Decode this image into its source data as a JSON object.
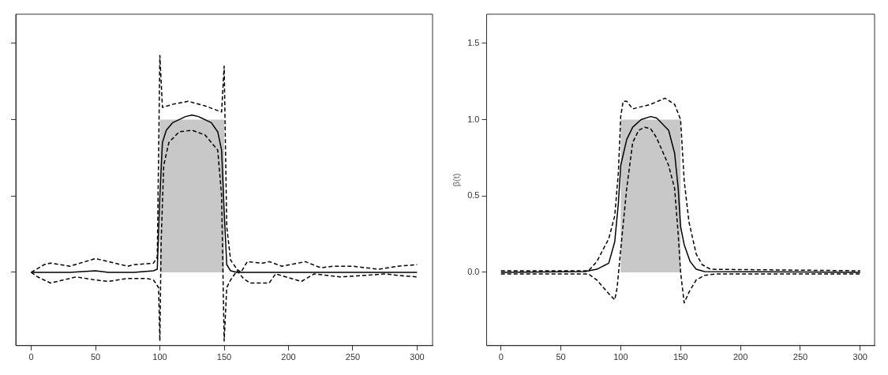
{
  "chart_data": [
    {
      "type": "line",
      "xlim": [
        -12,
        312
      ],
      "xticks": [
        0,
        50,
        100,
        150,
        200,
        250,
        300
      ],
      "ylim": [
        -0.48,
        1.69
      ],
      "yticks": [
        {
          "value": 0,
          "label": null
        },
        {
          "value": 0.5,
          "label": null
        },
        {
          "value": 1,
          "label": null
        },
        {
          "value": 1.5,
          "label": null
        }
      ],
      "tick_labels": "x",
      "grid": false,
      "legend": false,
      "series": [
        {
          "type": "area",
          "color": "#c8c8c8",
          "x": [
            0,
            100,
            100,
            150,
            150,
            300
          ],
          "values": [
            0,
            0,
            1,
            1,
            0,
            0
          ]
        },
        {
          "color": "#000000",
          "x": [
            0,
            30,
            50,
            60,
            80,
            95,
            98,
            100,
            102,
            105,
            110,
            120,
            125,
            130,
            140,
            145,
            148,
            150,
            152,
            155,
            160,
            200,
            250,
            300
          ],
          "values": [
            0,
            0,
            0.01,
            0,
            0,
            0.01,
            0.02,
            0.5,
            0.85,
            0.93,
            0.98,
            1.02,
            1.03,
            1.02,
            0.98,
            0.92,
            0.8,
            0.4,
            0.05,
            0.01,
            0,
            0,
            0,
            0
          ]
        },
        {
          "color": "#000000",
          "line_style": "dashed",
          "x": [
            0,
            10,
            15,
            30,
            50,
            60,
            75,
            80,
            95,
            98,
            100,
            102,
            110,
            122,
            135,
            148,
            150,
            152,
            155,
            160,
            163,
            168,
            180,
            185,
            195,
            213,
            225,
            235,
            250,
            270,
            285,
            300
          ],
          "values": [
            0,
            0.05,
            0.06,
            0.04,
            0.09,
            0.07,
            0.04,
            0.05,
            0.06,
            0.1,
            1.42,
            1.08,
            1.1,
            1.12,
            1.09,
            1.05,
            1.35,
            0.3,
            0.08,
            0.02,
            0,
            0.07,
            0.06,
            0.07,
            0.04,
            0.07,
            0.03,
            0.04,
            0.04,
            0.02,
            0.04,
            0.05
          ]
        },
        {
          "color": "#000000",
          "line_style": "dashed",
          "x": [
            0,
            5,
            15,
            35,
            50,
            60,
            75,
            90,
            95,
            99,
            100,
            101,
            103,
            107,
            115,
            125,
            135,
            145,
            148,
            150,
            152,
            155,
            160,
            165,
            170,
            185,
            190,
            210,
            220,
            240,
            260,
            275,
            285,
            300
          ],
          "values": [
            0,
            -0.03,
            -0.07,
            -0.03,
            -0.05,
            -0.06,
            -0.04,
            -0.04,
            -0.05,
            -0.1,
            -0.45,
            0.2,
            0.7,
            0.85,
            0.92,
            0.93,
            0.9,
            0.8,
            0.5,
            -0.45,
            -0.1,
            -0.05,
            0.01,
            -0.04,
            -0.07,
            -0.07,
            -0.01,
            -0.06,
            -0.01,
            -0.03,
            -0.02,
            -0.01,
            -0.02,
            -0.03
          ]
        }
      ]
    },
    {
      "type": "line",
      "ylabel": "β(t)",
      "xlim": [
        -12,
        312
      ],
      "xticks": [
        0,
        50,
        100,
        150,
        200,
        250,
        300
      ],
      "ylim": [
        -0.48,
        1.69
      ],
      "yticks": [
        {
          "value": 0,
          "label": "0.0"
        },
        {
          "value": 0.5,
          "label": "0.5"
        },
        {
          "value": 1,
          "label": "1.0"
        },
        {
          "value": 1.5,
          "label": "1.5"
        }
      ],
      "grid": false,
      "legend": false,
      "series": [
        {
          "type": "area",
          "color": "#c8c8c8",
          "x": [
            0,
            100,
            100,
            150,
            150,
            300
          ],
          "values": [
            0,
            0,
            1,
            1,
            0,
            0
          ]
        },
        {
          "color": "#000000",
          "x": [
            0,
            70,
            80,
            90,
            95,
            98,
            100,
            105,
            110,
            117,
            125,
            130,
            140,
            145,
            148,
            150,
            153,
            158,
            163,
            170,
            300
          ],
          "values": [
            0,
            0.005,
            0.02,
            0.06,
            0.2,
            0.45,
            0.7,
            0.87,
            0.95,
            1,
            1.02,
            1.01,
            0.93,
            0.78,
            0.55,
            0.3,
            0.18,
            0.07,
            0.02,
            0.005,
            0
          ]
        },
        {
          "color": "#000000",
          "line_style": "dashed",
          "x": [
            0,
            73,
            80,
            90,
            95,
            98,
            100,
            102,
            105,
            110,
            115,
            125,
            137,
            145,
            150,
            153,
            157,
            163,
            168,
            175,
            300
          ],
          "values": [
            0.01,
            0.01,
            0.07,
            0.22,
            0.37,
            0.65,
            1.02,
            1.12,
            1.12,
            1.07,
            1.08,
            1.1,
            1.14,
            1.1,
            1,
            0.6,
            0.33,
            0.12,
            0.05,
            0.02,
            0.01
          ]
        },
        {
          "color": "#000000",
          "line_style": "dashed",
          "x": [
            0,
            73,
            80,
            90,
            95,
            97,
            100,
            105,
            110,
            115,
            120,
            125,
            130,
            140,
            145,
            148,
            150,
            153,
            157,
            163,
            170,
            180,
            300
          ],
          "values": [
            -0.01,
            -0.01,
            -0.05,
            -0.14,
            -0.18,
            -0.1,
            0.15,
            0.55,
            0.85,
            0.93,
            0.95,
            0.94,
            0.88,
            0.7,
            0.55,
            0.25,
            0,
            -0.2,
            -0.13,
            -0.05,
            -0.02,
            -0.01,
            -0.01
          ]
        }
      ]
    }
  ]
}
